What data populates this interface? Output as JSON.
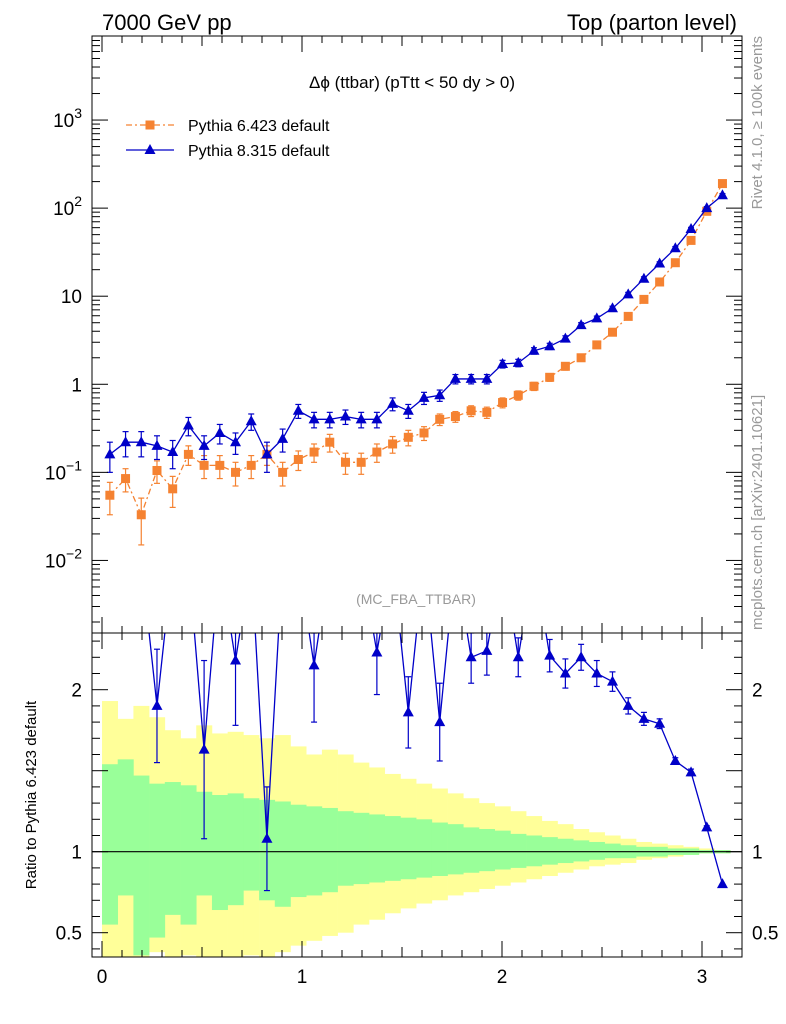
{
  "header": {
    "left": "7000 GeV pp",
    "right": "Top (parton level)"
  },
  "side_labels": {
    "rivet": "Rivet 4.1.0, ≥ 100k events",
    "mcplots": "mcplots.cern.ch [arXiv:2401.10621]"
  },
  "colors": {
    "p6": "#f58231",
    "p8": "#0000c8",
    "band_inner": "#99ff99",
    "band_outer": "#ffff99"
  },
  "chart_data": [
    {
      "type": "scatter",
      "title": "Δϕ (ttbar) (pTtt < 50 dy > 0)",
      "analysis": "(MC_FBA_TTBAR)",
      "yscale": "log",
      "xlim": [
        -0.05,
        3.2
      ],
      "ylim": [
        0.0015,
        9000
      ],
      "y_ticks": [
        {
          "v": 0.01,
          "base": "10",
          "exp": "−2"
        },
        {
          "v": 0.1,
          "base": "10",
          "exp": "−1"
        },
        {
          "v": 1,
          "base": "1",
          "exp": ""
        },
        {
          "v": 10,
          "base": "10",
          "exp": ""
        },
        {
          "v": 100,
          "base": "10",
          "exp": "2"
        },
        {
          "v": 1000,
          "base": "10",
          "exp": "3"
        }
      ],
      "legend": [
        {
          "label": "Pythia 6.423 default",
          "marker": "square",
          "series": "p6"
        },
        {
          "label": "Pythia 8.315 default",
          "marker": "triangle",
          "series": "p8"
        }
      ],
      "x": [
        0.0393,
        0.1178,
        0.1963,
        0.2749,
        0.3534,
        0.432,
        0.5105,
        0.589,
        0.6676,
        0.7461,
        0.8247,
        0.9032,
        0.9817,
        1.0603,
        1.1388,
        1.2174,
        1.2959,
        1.3744,
        1.453,
        1.5315,
        1.6101,
        1.6886,
        1.7671,
        1.8457,
        1.9242,
        2.0028,
        2.0813,
        2.1598,
        2.2384,
        2.3169,
        2.3955,
        2.474,
        2.5525,
        2.6311,
        2.7096,
        2.7882,
        2.8667,
        2.9452,
        3.0238,
        3.1023
      ],
      "series": [
        {
          "name": "Pythia 6.423 default",
          "values": [
            0.055,
            0.085,
            0.033,
            0.105,
            0.065,
            0.16,
            0.12,
            0.12,
            0.1,
            0.12,
            0.16,
            0.1,
            0.14,
            0.17,
            0.22,
            0.13,
            0.13,
            0.17,
            0.21,
            0.25,
            0.28,
            0.4,
            0.43,
            0.5,
            0.48,
            0.62,
            0.75,
            0.95,
            1.2,
            1.6,
            2.0,
            2.8,
            3.9,
            5.9,
            9.2,
            14.5,
            24,
            43,
            92,
            190
          ],
          "errors": [
            0.022,
            0.025,
            0.018,
            0.03,
            0.025,
            0.04,
            0.035,
            0.035,
            0.03,
            0.035,
            0.04,
            0.03,
            0.035,
            0.04,
            0.05,
            0.035,
            0.035,
            0.04,
            0.045,
            0.05,
            0.05,
            0.06,
            0.06,
            0.07,
            0.07,
            0.08,
            0.09,
            0.1,
            0.12,
            0.15,
            0.18,
            0.22,
            0.3,
            0.4,
            0.6,
            0.8,
            1.2,
            2,
            4,
            8
          ]
        },
        {
          "name": "Pythia 8.315 default",
          "values": [
            0.16,
            0.22,
            0.22,
            0.2,
            0.17,
            0.34,
            0.2,
            0.28,
            0.22,
            0.38,
            0.16,
            0.24,
            0.5,
            0.4,
            0.4,
            0.43,
            0.4,
            0.4,
            0.6,
            0.5,
            0.7,
            0.75,
            1.15,
            1.15,
            1.15,
            1.7,
            1.75,
            2.4,
            2.7,
            3.3,
            4.7,
            5.6,
            7.3,
            10.5,
            15.8,
            23.5,
            35,
            58,
            100,
            140
          ],
          "errors": [
            0.06,
            0.07,
            0.07,
            0.06,
            0.06,
            0.08,
            0.06,
            0.07,
            0.06,
            0.08,
            0.06,
            0.07,
            0.09,
            0.08,
            0.08,
            0.08,
            0.08,
            0.08,
            0.1,
            0.09,
            0.11,
            0.11,
            0.14,
            0.14,
            0.14,
            0.17,
            0.17,
            0.2,
            0.22,
            0.25,
            0.3,
            0.35,
            0.4,
            0.55,
            0.8,
            1.1,
            1.6,
            2.5,
            4,
            6
          ]
        }
      ]
    },
    {
      "type": "scatter",
      "ylabel": "Ratio to Pythia 6.423 default",
      "xlim": [
        -0.05,
        3.2
      ],
      "ylim": [
        0.35,
        2.35
      ],
      "x_ticks": [
        "0",
        "1",
        "2",
        "3"
      ],
      "y_ticks": [
        {
          "v": 0.5,
          "label": "0.5"
        },
        {
          "v": 1,
          "label": "1"
        },
        {
          "v": 2,
          "label": "2"
        }
      ],
      "ratio": {
        "name": "Pythia 8.315 default",
        "x": [
          0.2749,
          0.5105,
          0.6676,
          0.8247,
          1.0603,
          1.3744,
          1.5315,
          1.6886,
          1.8457,
          1.9242,
          2.0813,
          2.2384,
          2.3169,
          2.3955,
          2.474,
          2.5525,
          2.6311,
          2.7096,
          2.7882,
          2.8667,
          2.9452,
          3.0238,
          3.1023
        ],
        "values": [
          1.9,
          1.63,
          2.18,
          1.08,
          2.15,
          2.23,
          1.86,
          1.8,
          2.2,
          2.24,
          2.2,
          2.21,
          2.1,
          2.2,
          2.1,
          2.05,
          1.9,
          1.82,
          1.79,
          1.56,
          1.49,
          1.15,
          0.8
        ],
        "errors": [
          0.35,
          0.55,
          0.4,
          0.32,
          0.35,
          0.26,
          0.22,
          0.24,
          0.16,
          0.15,
          0.12,
          0.1,
          0.09,
          0.08,
          0.08,
          0.06,
          0.05,
          0.04,
          0.03,
          0.02,
          0.02,
          0.01,
          0.0
        ],
        "in_range_x": [
          0.0393,
          0.1178,
          0.1963,
          0.3534,
          0.432,
          0.589,
          0.7461,
          0.9032,
          0.9817,
          1.1388,
          1.2174,
          1.2959,
          1.453,
          1.6101,
          1.7671,
          2.0028,
          2.1598,
          2.9452
        ],
        "note": "segments connect through points above the plotted range"
      },
      "band_inner": [
        0.55,
        0.73,
        0.36,
        0.47,
        0.61,
        0.55,
        0.73,
        0.64,
        0.67,
        0.76,
        0.7,
        0.66,
        0.72,
        0.73,
        0.75,
        0.79,
        0.8,
        0.81,
        0.82,
        0.83,
        0.84,
        0.85,
        0.86,
        0.87,
        0.88,
        0.89,
        0.9,
        0.91,
        0.92,
        0.93,
        0.94,
        0.95,
        0.96,
        0.96,
        0.97,
        0.97,
        0.98,
        0.98,
        0.99,
        0.99
      ],
      "band_outer": [
        0.3,
        0.32,
        0.28,
        0.38,
        0.3,
        0.36,
        0.32,
        0.33,
        0.3,
        0.36,
        0.32,
        0.38,
        0.42,
        0.45,
        0.48,
        0.5,
        0.55,
        0.58,
        0.62,
        0.65,
        0.68,
        0.7,
        0.73,
        0.75,
        0.77,
        0.79,
        0.81,
        0.83,
        0.85,
        0.87,
        0.89,
        0.91,
        0.92,
        0.93,
        0.95,
        0.96,
        0.97,
        0.98,
        0.99,
        0.99
      ],
      "band_inner_up": [
        1.54,
        1.57,
        1.47,
        1.42,
        1.43,
        1.41,
        1.37,
        1.35,
        1.36,
        1.33,
        1.32,
        1.31,
        1.29,
        1.28,
        1.27,
        1.25,
        1.24,
        1.23,
        1.22,
        1.21,
        1.2,
        1.18,
        1.17,
        1.15,
        1.14,
        1.13,
        1.11,
        1.1,
        1.09,
        1.08,
        1.07,
        1.06,
        1.05,
        1.04,
        1.03,
        1.03,
        1.02,
        1.02,
        1.01,
        1.01
      ],
      "band_outer_up": [
        1.93,
        1.82,
        1.9,
        1.83,
        1.75,
        1.7,
        1.78,
        1.73,
        1.74,
        1.72,
        1.7,
        1.72,
        1.65,
        1.6,
        1.63,
        1.6,
        1.55,
        1.52,
        1.48,
        1.45,
        1.42,
        1.39,
        1.36,
        1.33,
        1.3,
        1.28,
        1.25,
        1.22,
        1.19,
        1.17,
        1.14,
        1.12,
        1.1,
        1.08,
        1.06,
        1.05,
        1.04,
        1.03,
        1.02,
        1.01
      ]
    }
  ]
}
